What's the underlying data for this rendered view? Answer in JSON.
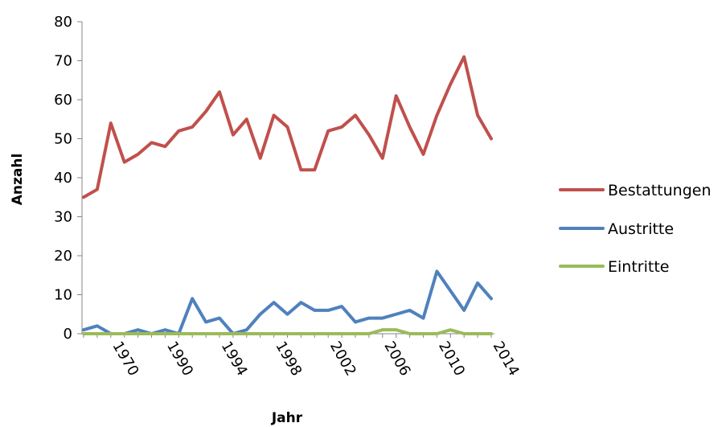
{
  "chart_data": {
    "type": "line",
    "xlabel": "Jahr",
    "ylabel": "Anzahl",
    "ylim": [
      0,
      80
    ],
    "yticks": [
      0,
      10,
      20,
      30,
      40,
      50,
      60,
      70,
      80
    ],
    "x_tick_labels": [
      {
        "label": "1970",
        "index": 2
      },
      {
        "label": "1990",
        "index": 6
      },
      {
        "label": "1994",
        "index": 10
      },
      {
        "label": "1998",
        "index": 14
      },
      {
        "label": "2002",
        "index": 18
      },
      {
        "label": "2006",
        "index": 22
      },
      {
        "label": "2010",
        "index": 26
      },
      {
        "label": "2014",
        "index": 30
      }
    ],
    "point_count": 31,
    "grid": false,
    "legend_position": "right",
    "series": [
      {
        "name": "Bestattungen",
        "color": "#c0504d",
        "values": [
          35,
          37,
          54,
          44,
          46,
          49,
          48,
          52,
          53,
          57,
          62,
          51,
          55,
          45,
          56,
          53,
          42,
          42,
          52,
          53,
          56,
          51,
          45,
          61,
          53,
          46,
          56,
          64,
          71,
          56,
          50
        ]
      },
      {
        "name": "Austritte",
        "color": "#4f81bd",
        "values": [
          1,
          2,
          0,
          0,
          1,
          0,
          1,
          0,
          9,
          3,
          4,
          0,
          1,
          5,
          8,
          5,
          8,
          6,
          6,
          7,
          3,
          4,
          4,
          5,
          6,
          4,
          16,
          11,
          6,
          13,
          9
        ]
      },
      {
        "name": "Eintritte",
        "color": "#9bbb59",
        "values": [
          0,
          0,
          0,
          0,
          0,
          0,
          0,
          0,
          0,
          0,
          0,
          0,
          0,
          0,
          0,
          0,
          0,
          0,
          0,
          0,
          0,
          0,
          1,
          1,
          0,
          0,
          0,
          1,
          0,
          0,
          0
        ]
      }
    ]
  }
}
